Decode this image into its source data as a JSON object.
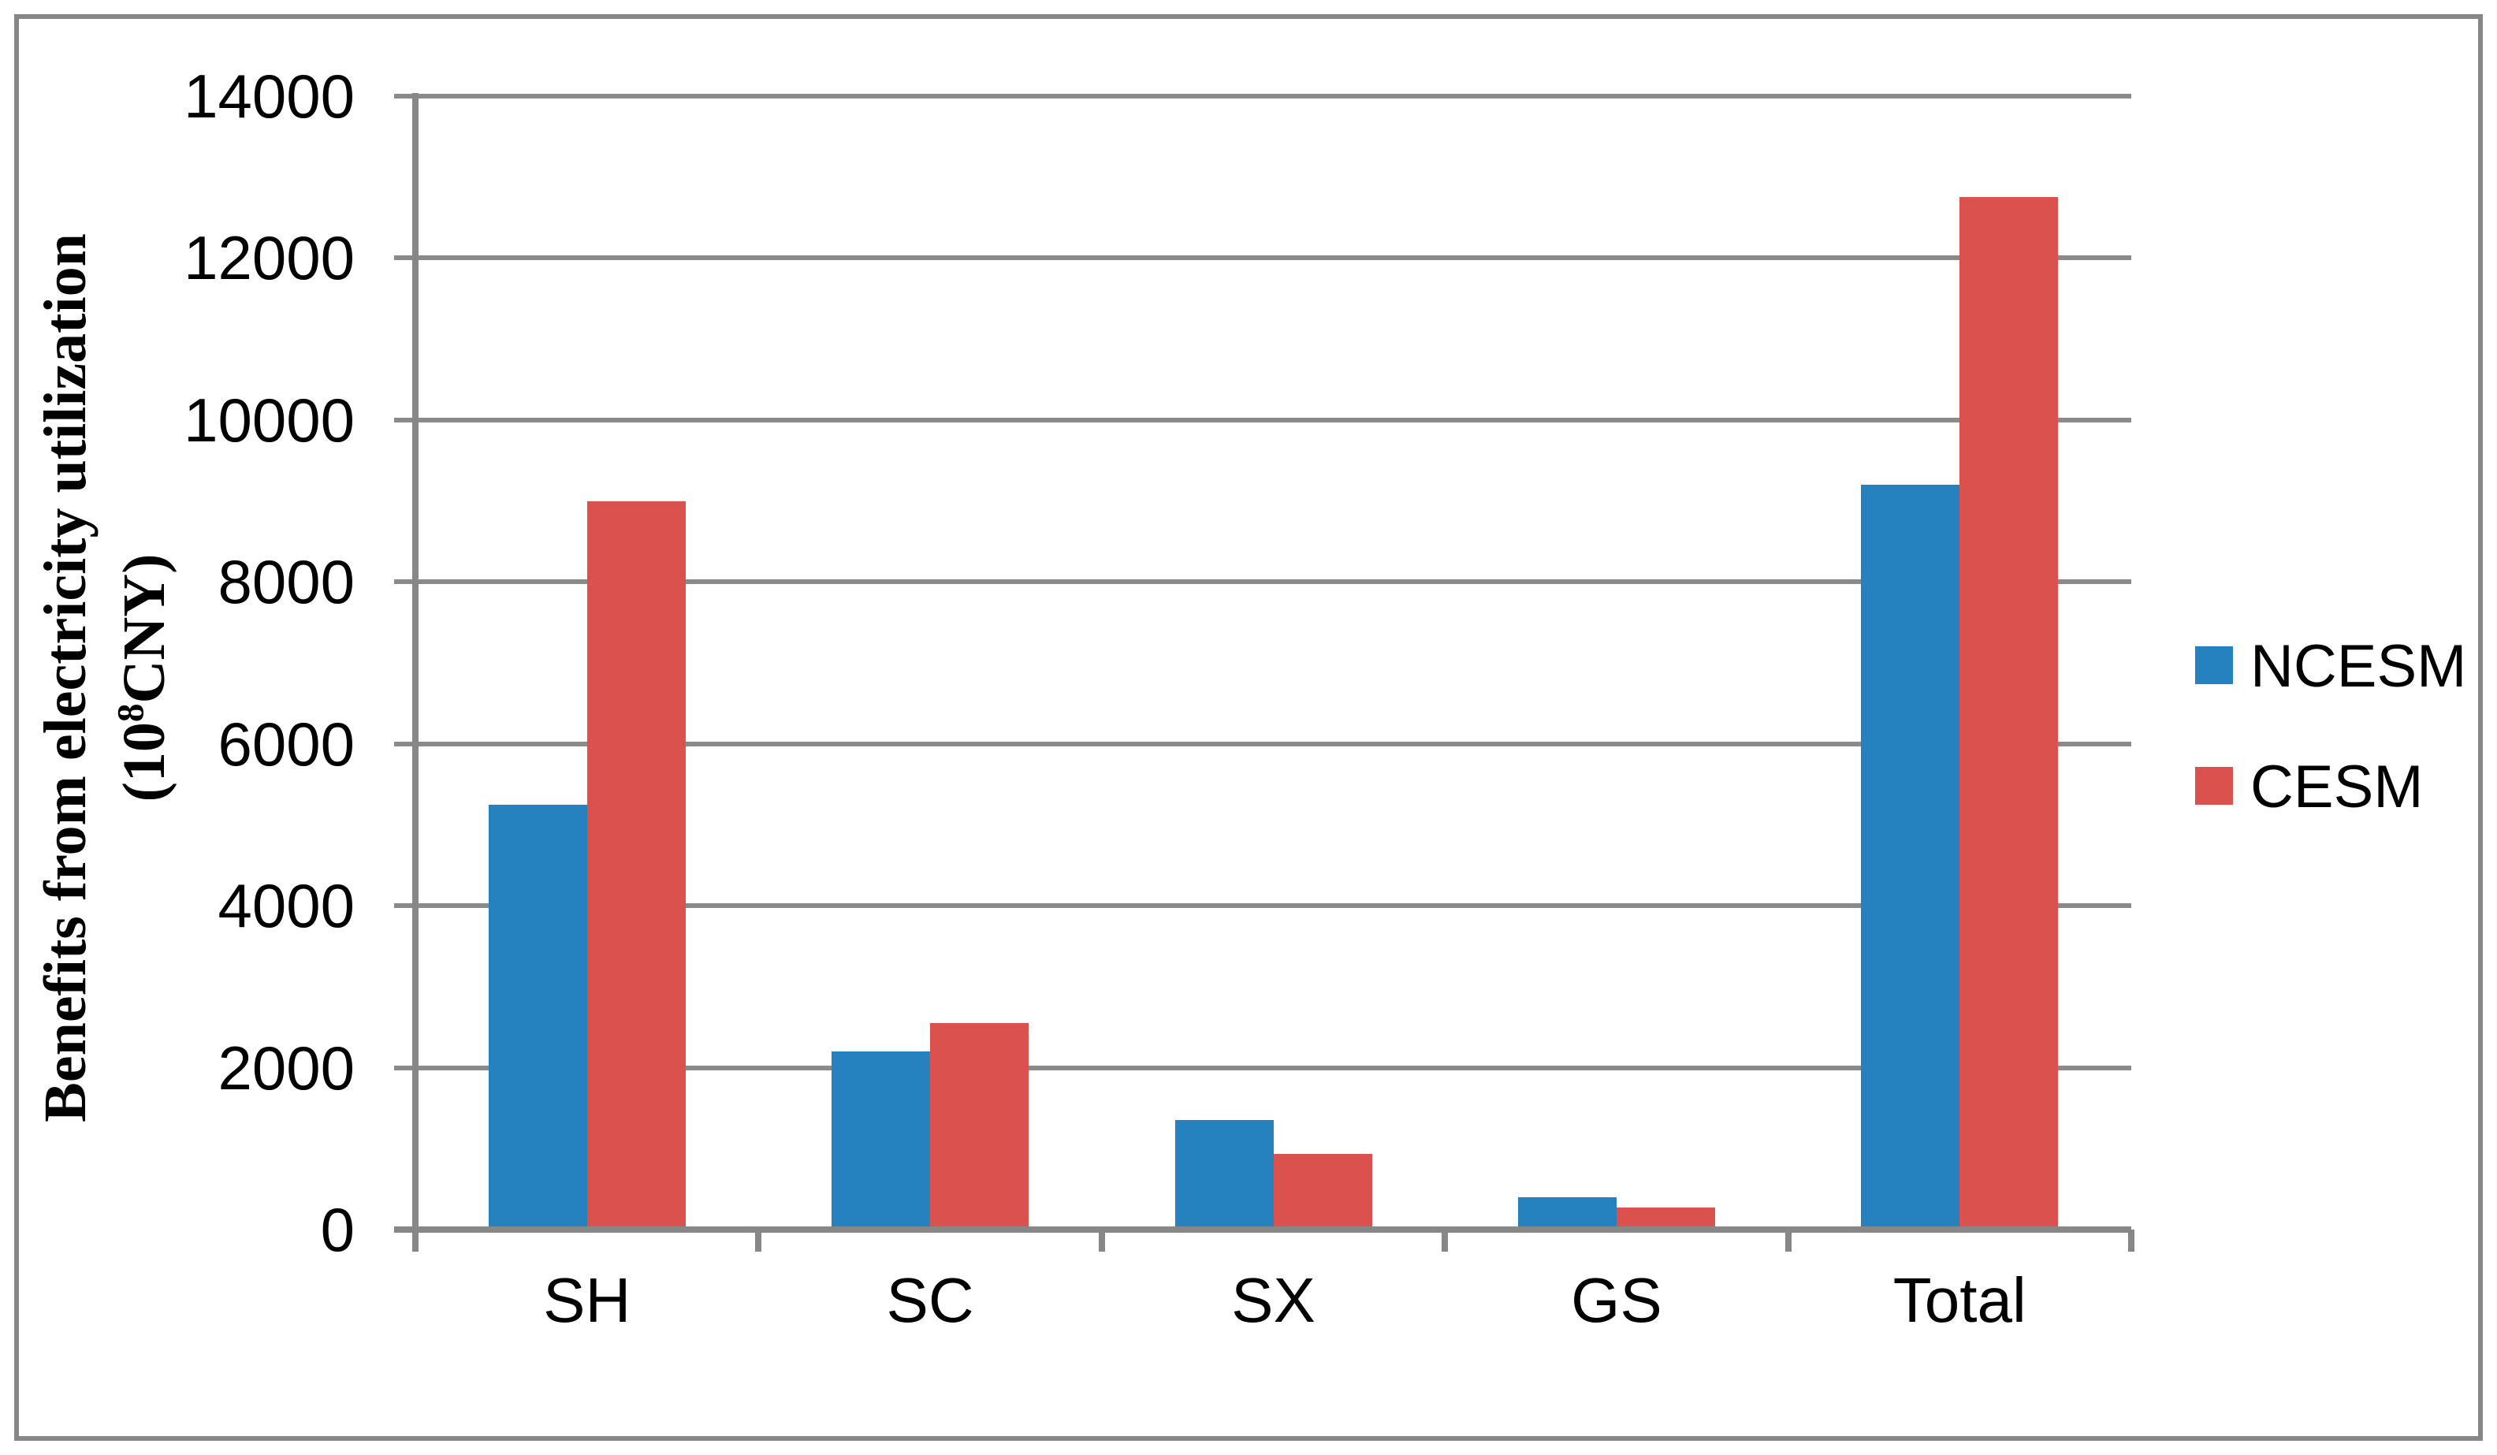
{
  "chart_data": {
    "type": "bar",
    "categories": [
      "SH",
      "SC",
      "SX",
      "GS",
      "Total"
    ],
    "series": [
      {
        "name": "NCESM",
        "color": "#2681BF",
        "values": [
          5250,
          2200,
          1350,
          400,
          9200
        ]
      },
      {
        "name": "CESM",
        "color": "#DB514E",
        "values": [
          9000,
          2550,
          930,
          270,
          12750
        ]
      }
    ],
    "title": "",
    "xlabel": "",
    "ylabel_line1": "Benefits from electricity utilization",
    "ylabel_line2_pre": "(10",
    "ylabel_line2_sup": "8",
    "ylabel_line2_post": "CNY)",
    "ylim": [
      0,
      14000
    ],
    "ytick_step": 2000,
    "ytick_labels": [
      "0",
      "2000",
      "4000",
      "6000",
      "8000",
      "10000",
      "12000",
      "14000"
    ],
    "grid": "horizontal",
    "legend_position": "right",
    "axis_color": "#878787",
    "gridline_color": "#8A8A8A",
    "frame_color": "#878787",
    "background_color": "#FFFFFF"
  },
  "legend": {
    "items": [
      {
        "label": "NCESM",
        "color": "#2681BF"
      },
      {
        "label": "CESM",
        "color": "#DB514E"
      }
    ]
  }
}
